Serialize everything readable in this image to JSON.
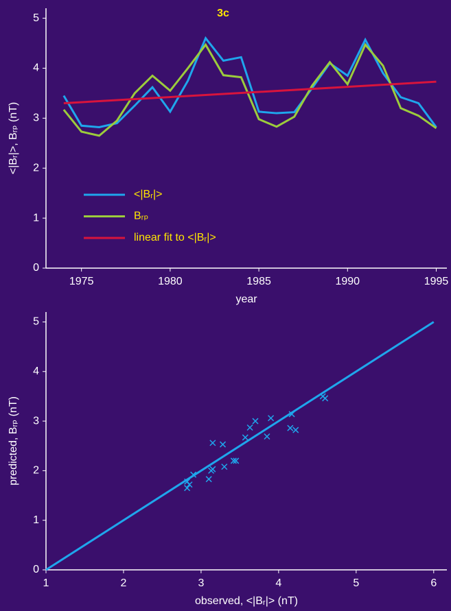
{
  "chart_data": [
    {
      "type": "line",
      "title": "3c",
      "xlabel": "year",
      "ylabel": "<|Bᵣ|>, Bᵣₚ (nT)",
      "x": [
        1974,
        1975,
        1976,
        1977,
        1978,
        1979,
        1980,
        1981,
        1982,
        1983,
        1984,
        1985,
        1986,
        1987,
        1988,
        1989,
        1990,
        1991,
        1992,
        1993,
        1994,
        1995
      ],
      "series": [
        {
          "name": "<|Bᵣ|>",
          "color": "#1fa6ec",
          "values": [
            3.45,
            2.85,
            2.82,
            2.9,
            3.25,
            3.62,
            3.13,
            3.75,
            4.6,
            4.15,
            4.22,
            3.13,
            3.1,
            3.12,
            3.6,
            4.1,
            3.85,
            4.57,
            3.9,
            3.42,
            3.3,
            2.82
          ]
        },
        {
          "name": "Bᵣₚ",
          "color": "#9ccc3c",
          "values": [
            3.17,
            2.73,
            2.65,
            2.95,
            3.5,
            3.85,
            3.55,
            4.0,
            4.47,
            3.86,
            3.82,
            2.98,
            2.83,
            3.03,
            3.65,
            4.12,
            3.68,
            4.47,
            4.05,
            3.2,
            3.05,
            2.8
          ]
        },
        {
          "name": "linear fit to <|Bᵣ|>",
          "color": "#d8143c",
          "x": [
            1974,
            1995
          ],
          "values": [
            3.3,
            3.73
          ]
        }
      ],
      "xlim": [
        1973,
        1995.6
      ],
      "xticks": [
        1975,
        1980,
        1985,
        1990,
        1995
      ],
      "ylim": [
        0,
        5.2
      ],
      "yticks": [
        0,
        1,
        2,
        3,
        4,
        5
      ],
      "legend": "lower left"
    },
    {
      "type": "scatter",
      "xlabel": "observed, <|Bᵣ|> (nT)",
      "ylabel": "predicted, Bᵣₚ (nT)",
      "series": [
        {
          "color": "#1fa6ec",
          "marker": "x",
          "x": [
            2.82,
            2.85,
            2.82,
            2.9,
            3.1,
            3.13,
            3.15,
            3.15,
            3.28,
            3.3,
            3.42,
            3.45,
            3.57,
            3.63,
            3.7,
            3.85,
            3.9,
            4.15,
            4.17,
            4.22,
            4.57,
            4.6
          ],
          "values": [
            1.78,
            1.72,
            1.65,
            1.92,
            1.83,
            2.0,
            2.03,
            2.56,
            2.53,
            2.08,
            2.2,
            2.2,
            2.67,
            2.87,
            3.0,
            2.69,
            3.06,
            2.86,
            3.14,
            2.82,
            3.5,
            3.46
          ]
        },
        {
          "color": "#1fa6ec",
          "marker": "line",
          "x": [
            1,
            6
          ],
          "values": [
            0,
            5
          ]
        }
      ],
      "xlim": [
        1,
        6.17
      ],
      "xticks": [
        1,
        2,
        3,
        4,
        5,
        6
      ],
      "ylim": [
        0,
        5.2
      ],
      "yticks": [
        0,
        1,
        2,
        3,
        4,
        5
      ]
    }
  ]
}
